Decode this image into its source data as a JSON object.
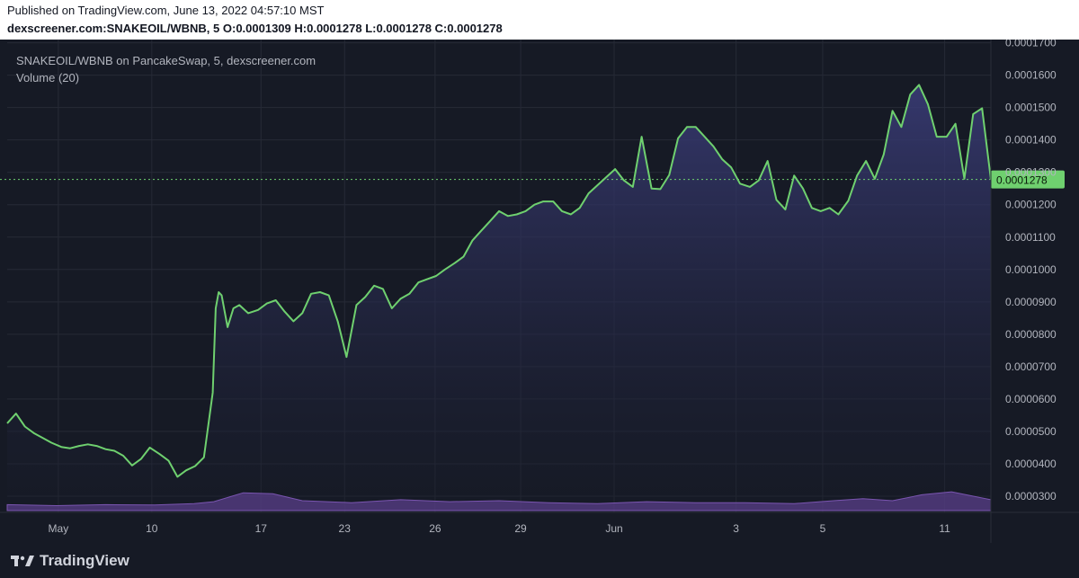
{
  "header": {
    "published": "Published on TradingView.com, June 13, 2022 04:57:10 MST",
    "symbol": "dexscreener.com:SNAKEOIL/WBNB, 5",
    "o_label": "O:",
    "o_value": "0.0001309",
    "h_label": "H:",
    "h_value": "0.0001278",
    "l_label": "L:",
    "l_value": "0.0001278",
    "c_label": "C:",
    "c_value": "0.0001278"
  },
  "legend": {
    "title": "SNAKEOIL/WBNB on PancakeSwap, 5, dexscreener.com",
    "volume": "Volume (20)"
  },
  "footer": {
    "brand": "TradingView",
    "logo_icon": "tradingview-logo-icon"
  },
  "colors": {
    "background": "#161a25",
    "grid": "#262a36",
    "line": "#6fd06f",
    "area_top": "#3b3d7a",
    "volume_fill": "#5a3f8a",
    "last_price_bg": "#6fd06f",
    "axis_text": "#b2b5be"
  },
  "chart_data": {
    "type": "area",
    "title": "SNAKEOIL/WBNB on PancakeSwap, 5, dexscreener.com",
    "xlabel": "",
    "ylabel": "",
    "ylim": [
      2.5e-05,
      0.000171
    ],
    "grid": true,
    "y_ticks": [
      "0.0001700",
      "0.0001600",
      "0.0001500",
      "0.0001400",
      "0.0001300",
      "0.0001200",
      "0.0001100",
      "0.0001000",
      "0.0000900",
      "0.0000800",
      "0.0000700",
      "0.0000600",
      "0.0000500",
      "0.0000400",
      "0.0000300"
    ],
    "y_tick_values": [
      0.00017,
      0.00016,
      0.00015,
      0.00014,
      0.00013,
      0.00012,
      0.00011,
      0.0001,
      9e-05,
      8e-05,
      7e-05,
      6e-05,
      5e-05,
      4e-05,
      3e-05
    ],
    "x_ticks": [
      "May",
      "10",
      "17",
      "23",
      "26",
      "29",
      "Jun",
      "3",
      "5",
      "11"
    ],
    "x_tick_positions": [
      0.052,
      0.147,
      0.258,
      0.343,
      0.435,
      0.522,
      0.617,
      0.741,
      0.829,
      0.953
    ],
    "last_price": "0.0001278",
    "last_price_value": 0.0001278,
    "series": [
      {
        "name": "SNAKEOIL/WBNB",
        "x": [
          0,
          0.009,
          0.018,
          0.027,
          0.036,
          0.045,
          0.055,
          0.064,
          0.073,
          0.082,
          0.091,
          0.1,
          0.109,
          0.118,
          0.127,
          0.136,
          0.145,
          0.155,
          0.164,
          0.173,
          0.182,
          0.191,
          0.2,
          0.209,
          0.212,
          0.215,
          0.218,
          0.224,
          0.23,
          0.236,
          0.245,
          0.255,
          0.264,
          0.273,
          0.282,
          0.291,
          0.3,
          0.309,
          0.318,
          0.327,
          0.336,
          0.345,
          0.355,
          0.364,
          0.373,
          0.382,
          0.391,
          0.4,
          0.409,
          0.418,
          0.427,
          0.436,
          0.445,
          0.455,
          0.464,
          0.473,
          0.482,
          0.491,
          0.5,
          0.509,
          0.518,
          0.527,
          0.536,
          0.545,
          0.555,
          0.564,
          0.573,
          0.582,
          0.591,
          0.6,
          0.609,
          0.618,
          0.627,
          0.636,
          0.645,
          0.655,
          0.664,
          0.673,
          0.682,
          0.691,
          0.7,
          0.709,
          0.718,
          0.727,
          0.736,
          0.745,
          0.755,
          0.764,
          0.773,
          0.782,
          0.791,
          0.8,
          0.809,
          0.818,
          0.827,
          0.836,
          0.845,
          0.855,
          0.864,
          0.873,
          0.882,
          0.891,
          0.9,
          0.909,
          0.918,
          0.927,
          0.936,
          0.945,
          0.955,
          0.964,
          0.973,
          0.982,
          0.991,
          1
        ],
        "values": [
          5.25e-05,
          5.55e-05,
          5.15e-05,
          4.95e-05,
          4.8e-05,
          4.65e-05,
          4.52e-05,
          4.48e-05,
          4.55e-05,
          4.6e-05,
          4.55e-05,
          4.45e-05,
          4.4e-05,
          4.25e-05,
          3.95e-05,
          4.15e-05,
          4.5e-05,
          4.3e-05,
          4.1e-05,
          3.6e-05,
          3.8e-05,
          3.93e-05,
          4.2e-05,
          6.2e-05,
          8.8e-05,
          9.3e-05,
          9.2e-05,
          8.22e-05,
          8.8e-05,
          8.9e-05,
          8.65e-05,
          8.75e-05,
          8.95e-05,
          9.05e-05,
          8.7e-05,
          8.4e-05,
          8.65e-05,
          9.25e-05,
          9.3e-05,
          9.2e-05,
          8.4e-05,
          7.3e-05,
          8.9e-05,
          9.15e-05,
          9.5e-05,
          9.4e-05,
          8.8e-05,
          9.1e-05,
          9.25e-05,
          9.6e-05,
          9.7e-05,
          9.8e-05,
          0.0001,
          0.000102,
          0.000104,
          0.000109,
          0.000112,
          0.000115,
          0.000118,
          0.0001165,
          0.000117,
          0.000118,
          0.00012,
          0.000121,
          0.000121,
          0.000118,
          0.000117,
          0.000119,
          0.0001235,
          0.000126,
          0.0001285,
          0.000131,
          0.0001275,
          0.0001255,
          0.000141,
          0.000125,
          0.0001248,
          0.0001292,
          0.0001405,
          0.000144,
          0.000144,
          0.000141,
          0.000138,
          0.000134,
          0.0001315,
          0.0001265,
          0.0001255,
          0.0001275,
          0.0001335,
          0.0001215,
          0.0001185,
          0.000129,
          0.000125,
          0.000119,
          0.000118,
          0.000119,
          0.000117,
          0.0001212,
          0.000129,
          0.0001335,
          0.000128,
          0.0001355,
          0.000149,
          0.000144,
          0.000154,
          0.000157,
          0.000151,
          0.000141,
          0.000141,
          0.000145,
          0.000128,
          0.000148,
          0.0001498,
          0.0001278
        ]
      },
      {
        "name": "Volume (20)",
        "x": [
          0,
          0.05,
          0.1,
          0.15,
          0.19,
          0.21,
          0.24,
          0.27,
          0.3,
          0.35,
          0.4,
          0.45,
          0.5,
          0.55,
          0.6,
          0.65,
          0.7,
          0.75,
          0.8,
          0.84,
          0.87,
          0.9,
          0.93,
          0.96,
          1
        ],
        "values": [
          0.3,
          0.25,
          0.3,
          0.28,
          0.35,
          0.45,
          0.9,
          0.85,
          0.5,
          0.4,
          0.55,
          0.45,
          0.5,
          0.4,
          0.35,
          0.45,
          0.4,
          0.4,
          0.35,
          0.5,
          0.6,
          0.5,
          0.8,
          0.95,
          0.55
        ]
      }
    ]
  }
}
